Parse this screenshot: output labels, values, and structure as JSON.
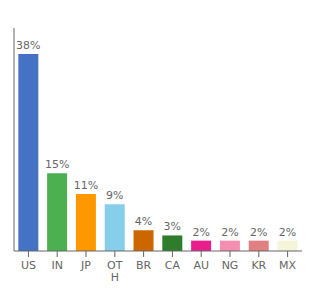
{
  "chart_data": {
    "type": "bar",
    "categories": [
      "US",
      "IN",
      "JP",
      "OT\nH",
      "BR",
      "CA",
      "AU",
      "NG",
      "KR",
      "MX"
    ],
    "values": [
      38,
      15,
      11,
      9,
      4,
      3,
      2,
      2,
      2,
      2
    ],
    "value_labels": [
      "38%",
      "15%",
      "11%",
      "9%",
      "4%",
      "3%",
      "2%",
      "2%",
      "2%",
      "2%"
    ],
    "data_labels": true,
    "colors": [
      "#4472c4",
      "#4caf50",
      "#ff9800",
      "#87ceeb",
      "#cc6600",
      "#2d7d2d",
      "#e91e8c",
      "#f48fb1",
      "#e08080",
      "#f5f5dc"
    ],
    "ylim": [
      0,
      43
    ],
    "tick_labels": "x",
    "grid": false
  }
}
